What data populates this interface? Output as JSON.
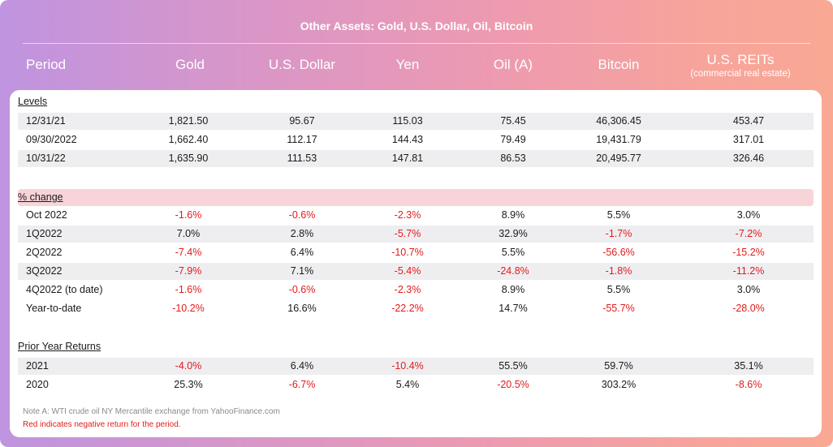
{
  "title": "Other Assets: Gold, U.S. Dollar, Oil, Bitcoin",
  "colors": {
    "negative": "#e31b1b",
    "pink_band": "#f8d4d8",
    "shade": "#eeeef1"
  },
  "header": {
    "period": "Period",
    "gold": "Gold",
    "usd": "U.S. Dollar",
    "yen": "Yen",
    "oil": "Oil (A)",
    "bitcoin": "Bitcoin",
    "reits": "U.S. REITs",
    "reits_sub": "(commercial real estate)"
  },
  "sections": {
    "levels": {
      "title": "Levels",
      "rows": [
        {
          "label": "12/31/21",
          "values": [
            "1,821.50",
            "95.67",
            "115.03",
            "75.45",
            "46,306.45",
            "453.47"
          ]
        },
        {
          "label": "09/30/2022",
          "values": [
            "1,662.40",
            "112.17",
            "144.43",
            "79.49",
            "19,431.79",
            "317.01"
          ]
        },
        {
          "label": "10/31/22",
          "values": [
            "1,635.90",
            "111.53",
            "147.81",
            "86.53",
            "20,495.77",
            "326.46"
          ]
        }
      ]
    },
    "pct_change": {
      "title": "% change",
      "rows": [
        {
          "label": "Oct 2022",
          "values": [
            "-1.6%",
            "-0.6%",
            "-2.3%",
            "8.9%",
            "5.5%",
            "3.0%"
          ]
        },
        {
          "label": "1Q2022",
          "values": [
            "7.0%",
            "2.8%",
            "-5.7%",
            "32.9%",
            "-1.7%",
            "-7.2%"
          ]
        },
        {
          "label": "2Q2022",
          "values": [
            "-7.4%",
            "6.4%",
            "-10.7%",
            "5.5%",
            "-56.6%",
            "-15.2%"
          ]
        },
        {
          "label": "3Q2022",
          "values": [
            "-7.9%",
            "7.1%",
            "-5.4%",
            "-24.8%",
            "-1.8%",
            "-11.2%"
          ]
        },
        {
          "label": "4Q2022 (to date)",
          "values": [
            "-1.6%",
            "-0.6%",
            "-2.3%",
            "8.9%",
            "5.5%",
            "3.0%"
          ]
        },
        {
          "label": "Year-to-date",
          "values": [
            "-10.2%",
            "16.6%",
            "-22.2%",
            "14.7%",
            "-55.7%",
            "-28.0%"
          ]
        }
      ]
    },
    "prior_year": {
      "title": "Prior Year Returns",
      "rows": [
        {
          "label": "2021",
          "values": [
            "-4.0%",
            "6.4%",
            "-10.4%",
            "55.5%",
            "59.7%",
            "35.1%"
          ]
        },
        {
          "label": "2020",
          "values": [
            "25.3%",
            "-6.7%",
            "5.4%",
            "-20.5%",
            "303.2%",
            "-8.6%"
          ]
        }
      ]
    }
  },
  "notes": {
    "note_a": "Note A: WTI crude oil NY Mercantile exchange from YahooFinance.com",
    "red_note": "Red indicates negative return for the period."
  }
}
